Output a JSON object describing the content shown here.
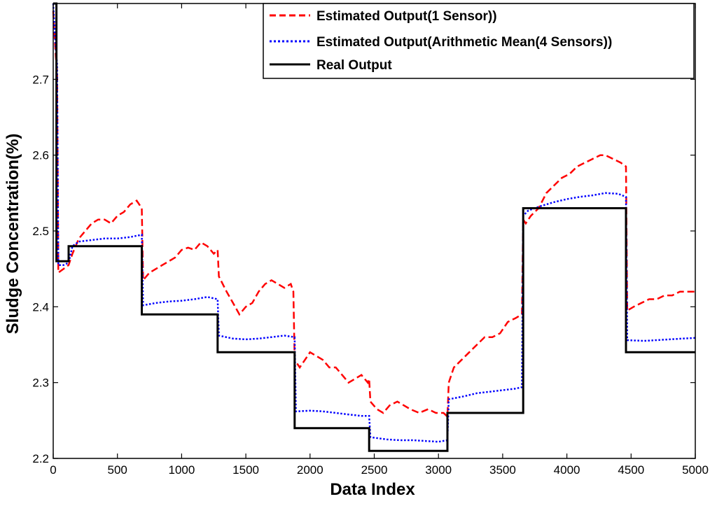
{
  "chart_data": {
    "type": "line",
    "title": "",
    "xlabel": "Data Index",
    "ylabel": "Sludge Concentration(%)",
    "xlim": [
      0,
      5000
    ],
    "ylim": [
      2.2,
      2.8
    ],
    "xticks": [
      0,
      500,
      1000,
      1500,
      2000,
      2500,
      3000,
      3500,
      4000,
      4500,
      5000
    ],
    "xtick_labels": [
      "0",
      "500",
      "1000",
      "1500",
      "2000",
      "2500",
      "3000",
      "3500",
      "4000",
      "4500",
      "5000"
    ],
    "yticks": [
      2.2,
      2.3,
      2.4,
      2.5,
      2.6,
      2.7
    ],
    "ytick_labels": [
      "2.2",
      "2.3",
      "2.4",
      "2.5",
      "2.6",
      "2.7"
    ],
    "grid": false,
    "legend_position": "top-right",
    "series": [
      {
        "name": "Estimated Output(1 Sensor))",
        "color": "#ff0000",
        "style": "dashed",
        "x": [
          0,
          10,
          20,
          30,
          40,
          80,
          120,
          150,
          200,
          250,
          300,
          350,
          400,
          450,
          500,
          550,
          600,
          650,
          690,
          700,
          750,
          800,
          850,
          900,
          950,
          1000,
          1050,
          1100,
          1150,
          1200,
          1250,
          1280,
          1290,
          1350,
          1400,
          1450,
          1500,
          1550,
          1600,
          1650,
          1700,
          1750,
          1800,
          1850,
          1870,
          1880,
          1920,
          1960,
          2000,
          2050,
          2100,
          2150,
          2200,
          2250,
          2300,
          2350,
          2400,
          2450,
          2460,
          2470,
          2520,
          2570,
          2620,
          2680,
          2730,
          2780,
          2850,
          2920,
          2980,
          3040,
          3070,
          3080,
          3120,
          3180,
          3240,
          3300,
          3360,
          3420,
          3480,
          3540,
          3600,
          3650,
          3660,
          3680,
          3720,
          3780,
          3840,
          3900,
          3960,
          4020,
          4080,
          4140,
          4200,
          4260,
          4300,
          4360,
          4420,
          4460,
          4470,
          4520,
          4580,
          4640,
          4700,
          4760,
          4820,
          4880,
          4940,
          5000
        ],
        "values": [
          2.79,
          2.76,
          2.73,
          2.71,
          2.445,
          2.45,
          2.455,
          2.47,
          2.49,
          2.5,
          2.51,
          2.515,
          2.515,
          2.51,
          2.52,
          2.525,
          2.535,
          2.54,
          2.53,
          2.435,
          2.445,
          2.45,
          2.455,
          2.46,
          2.465,
          2.475,
          2.478,
          2.475,
          2.485,
          2.48,
          2.47,
          2.475,
          2.44,
          2.42,
          2.405,
          2.39,
          2.4,
          2.405,
          2.42,
          2.43,
          2.435,
          2.43,
          2.425,
          2.43,
          2.42,
          2.33,
          2.32,
          2.33,
          2.34,
          2.335,
          2.33,
          2.32,
          2.32,
          2.31,
          2.3,
          2.305,
          2.31,
          2.3,
          2.305,
          2.275,
          2.265,
          2.26,
          2.27,
          2.275,
          2.27,
          2.265,
          2.26,
          2.265,
          2.26,
          2.26,
          2.255,
          2.3,
          2.32,
          2.33,
          2.34,
          2.35,
          2.36,
          2.36,
          2.365,
          2.38,
          2.385,
          2.39,
          2.515,
          2.51,
          2.52,
          2.53,
          2.55,
          2.56,
          2.57,
          2.575,
          2.585,
          2.59,
          2.595,
          2.6,
          2.6,
          2.595,
          2.59,
          2.585,
          2.395,
          2.4,
          2.405,
          2.41,
          2.41,
          2.415,
          2.415,
          2.42,
          2.42,
          2.42
        ]
      },
      {
        "name": "Estimated Output(Arithmetic Mean(4 Sensors))",
        "color": "#0000ff",
        "style": "dotted",
        "x": [
          0,
          10,
          20,
          30,
          40,
          80,
          120,
          150,
          200,
          300,
          400,
          500,
          600,
          690,
          700,
          800,
          900,
          1000,
          1100,
          1200,
          1280,
          1290,
          1400,
          1500,
          1600,
          1700,
          1800,
          1880,
          1890,
          2000,
          2100,
          2200,
          2300,
          2400,
          2460,
          2470,
          2600,
          2700,
          2800,
          2900,
          3000,
          3070,
          3080,
          3200,
          3300,
          3400,
          3500,
          3600,
          3650,
          3660,
          3700,
          3800,
          3900,
          4000,
          4100,
          4200,
          4300,
          4400,
          4460,
          4470,
          4600,
          4700,
          4800,
          4900,
          5000
        ],
        "values": [
          2.8,
          2.77,
          2.74,
          2.72,
          2.455,
          2.455,
          2.458,
          2.48,
          2.486,
          2.488,
          2.49,
          2.49,
          2.492,
          2.495,
          2.402,
          2.405,
          2.407,
          2.408,
          2.41,
          2.413,
          2.41,
          2.362,
          2.358,
          2.357,
          2.358,
          2.36,
          2.362,
          2.36,
          2.262,
          2.263,
          2.262,
          2.26,
          2.258,
          2.256,
          2.256,
          2.228,
          2.225,
          2.224,
          2.224,
          2.223,
          2.222,
          2.224,
          2.278,
          2.282,
          2.286,
          2.288,
          2.29,
          2.292,
          2.294,
          2.52,
          2.527,
          2.533,
          2.538,
          2.542,
          2.545,
          2.547,
          2.55,
          2.549,
          2.545,
          2.356,
          2.355,
          2.356,
          2.357,
          2.358,
          2.359
        ]
      },
      {
        "name": "Real Output",
        "color": "#000000",
        "style": "solid",
        "x": [
          0,
          25,
          25,
          120,
          120,
          690,
          690,
          1280,
          1280,
          1880,
          1880,
          2460,
          2460,
          3070,
          3070,
          3660,
          3660,
          4460,
          4460,
          5000
        ],
        "values": [
          2.8,
          2.8,
          2.46,
          2.46,
          2.48,
          2.48,
          2.39,
          2.39,
          2.34,
          2.34,
          2.24,
          2.24,
          2.21,
          2.21,
          2.26,
          2.26,
          2.53,
          2.53,
          2.34,
          2.34
        ]
      }
    ]
  }
}
